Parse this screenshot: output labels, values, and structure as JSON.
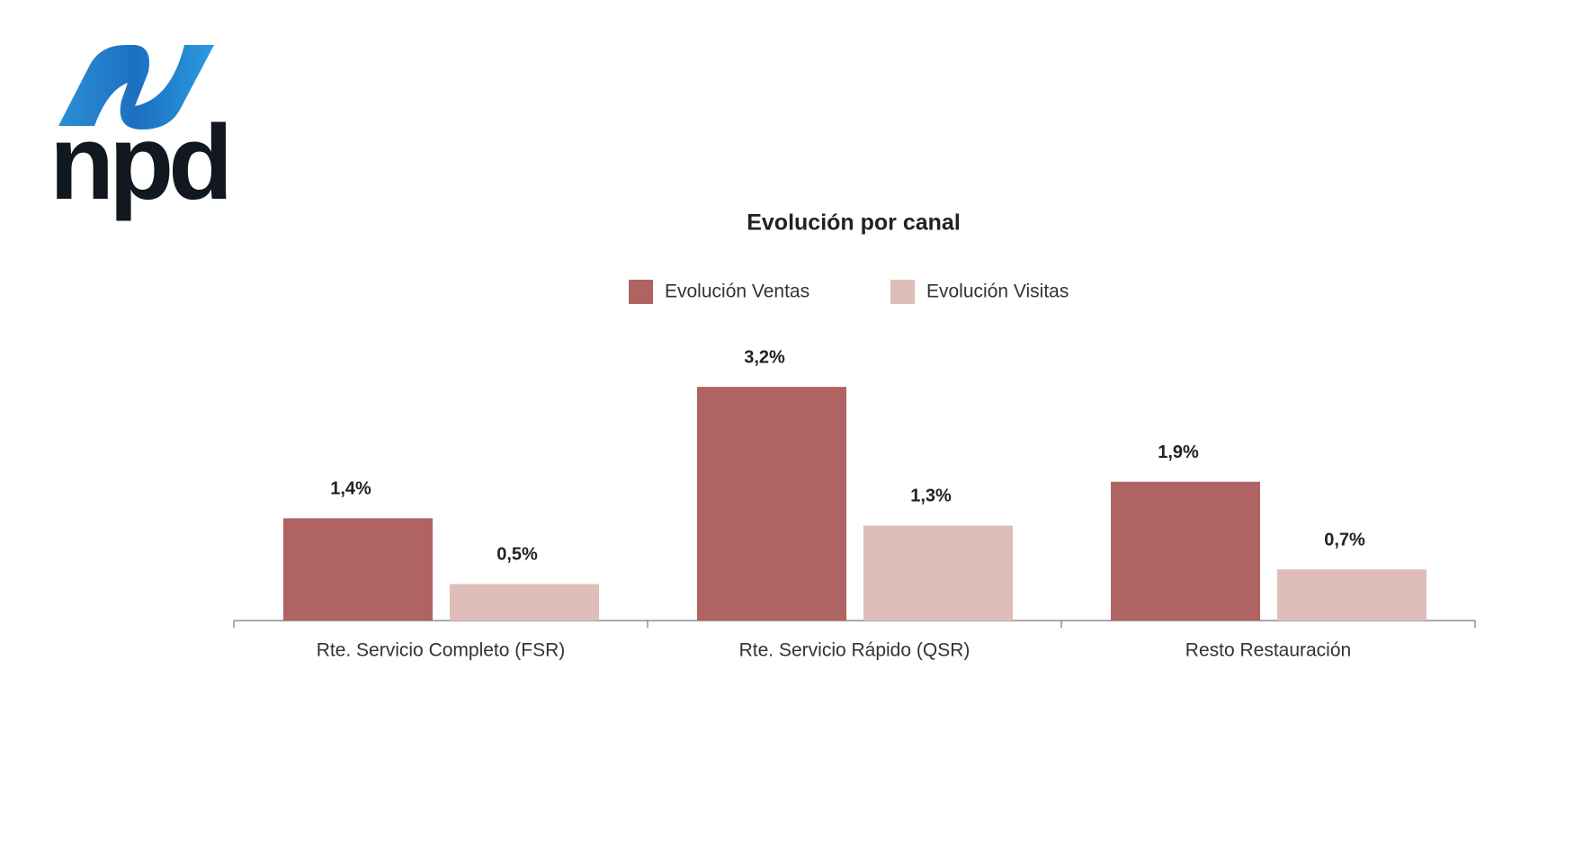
{
  "logo": "npd",
  "chart_data": {
    "type": "bar",
    "title": "Evolución por canal",
    "categories": [
      "Rte. Servicio Completo (FSR)",
      "Rte. Servicio Rápido (QSR)",
      "Resto Restauración"
    ],
    "series": [
      {
        "name": "Evolución Ventas",
        "color": "#b06363",
        "values": [
          1.4,
          3.2,
          1.9
        ],
        "value_labels": [
          "1,4%",
          "3,2%",
          "1,9%"
        ]
      },
      {
        "name": "Evolución Visitas",
        "color": "#dfbdb9",
        "values": [
          0.5,
          1.3,
          0.7
        ],
        "value_labels": [
          "0,5%",
          "1,3%",
          "0,7%"
        ]
      }
    ]
  }
}
